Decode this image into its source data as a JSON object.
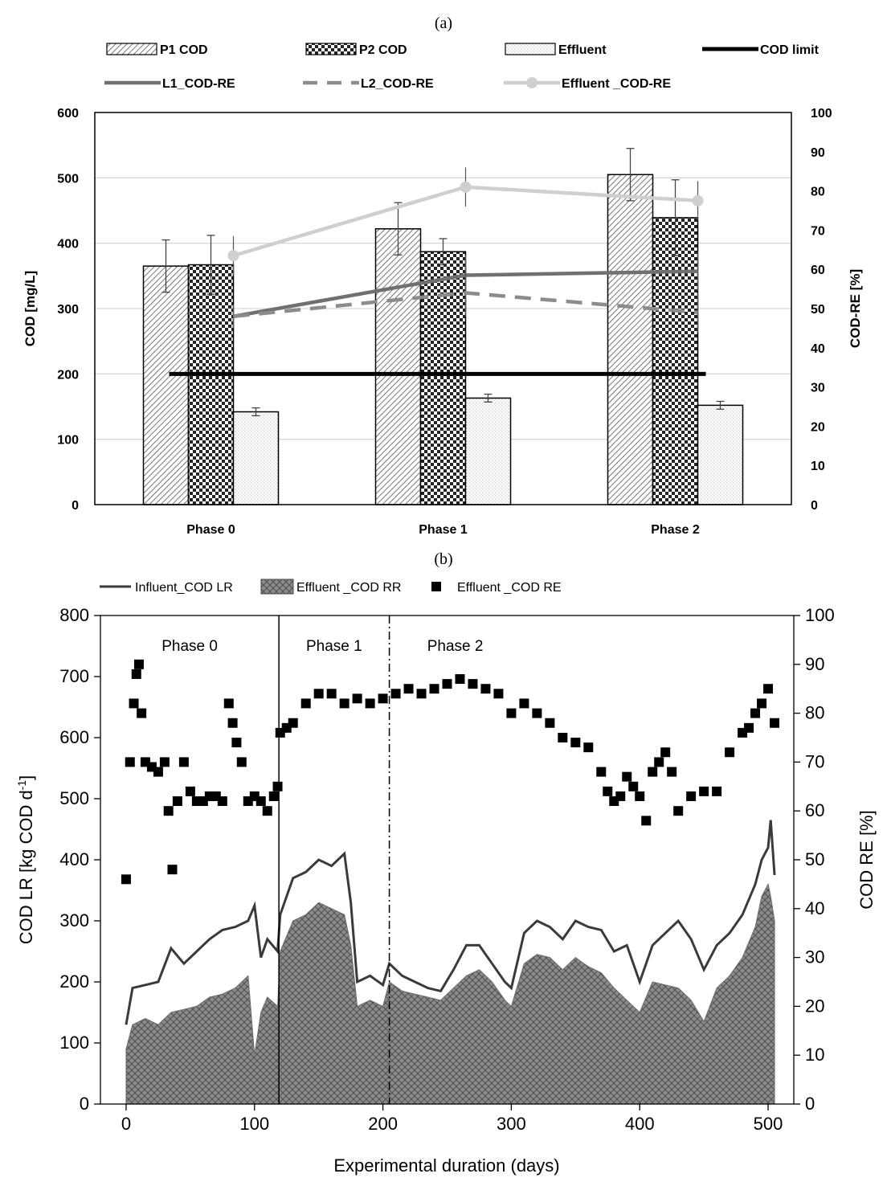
{
  "chart_data": [
    {
      "panel_label": "(a)",
      "type": "bar",
      "categories": [
        "Phase 0",
        "Phase 1",
        "Phase 2"
      ],
      "series": [
        {
          "name": "P1 COD",
          "values": [
            365,
            422,
            505
          ],
          "errors": [
            40,
            40,
            40
          ]
        },
        {
          "name": "P2 COD",
          "values": [
            367,
            387,
            439
          ],
          "errors": [
            45,
            20,
            58
          ]
        },
        {
          "name": "Effluent",
          "values": [
            142,
            163,
            152
          ],
          "errors": [
            6,
            6,
            6
          ]
        }
      ],
      "lines": [
        {
          "name": "COD limit",
          "values": [
            200,
            200,
            200
          ],
          "axis": "left"
        },
        {
          "name": "L1_COD-RE",
          "values": [
            48,
            58.5,
            59.5
          ],
          "errors": [
            3,
            5,
            5
          ],
          "axis": "right"
        },
        {
          "name": "L2_COD-RE",
          "values": [
            48,
            54,
            49
          ],
          "errors": [
            3,
            6,
            5
          ],
          "axis": "right"
        },
        {
          "name": "Effluent _COD-RE",
          "values": [
            63.5,
            81,
            77.5
          ],
          "errors": [
            5,
            5,
            5
          ],
          "axis": "right"
        }
      ],
      "ylabel": "COD [mg/L]",
      "ylim": [
        0,
        600
      ],
      "yticks": [
        "0",
        "100",
        "200",
        "300",
        "400",
        "500",
        "600"
      ],
      "y2label": "COD-RE [%]",
      "y2lim": [
        0,
        100
      ],
      "y2ticks": [
        "0",
        "10",
        "20",
        "30",
        "40",
        "50",
        "60",
        "70",
        "80",
        "90",
        "100"
      ],
      "legend": "top"
    },
    {
      "panel_label": "(b)",
      "type": "line",
      "xlabel": "Experimental duration (days)",
      "xlim": [
        -20,
        520
      ],
      "xticks": [
        "0",
        "100",
        "200",
        "300",
        "400",
        "500"
      ],
      "ylabel": "COD LR [kg COD d",
      "ylabel_sup": "-1",
      "ylabel_end": "]",
      "ylim": [
        0,
        800
      ],
      "yticks": [
        "0",
        "100",
        "200",
        "300",
        "400",
        "500",
        "600",
        "700",
        "800"
      ],
      "y2label": "COD RE [%]",
      "y2lim": [
        0,
        100
      ],
      "y2ticks": [
        "0",
        "10",
        "20",
        "30",
        "40",
        "50",
        "60",
        "70",
        "80",
        "90",
        "100"
      ],
      "phase_labels": [
        "Phase 0",
        "Phase 1",
        "Phase 2"
      ],
      "phase_boundaries": [
        119,
        205
      ],
      "legend_labels": [
        "Influent_COD LR",
        "Effluent _COD RR",
        "Effluent _COD RE"
      ],
      "series": [
        {
          "name": "Influent_COD LR",
          "kind": "line",
          "x": [
            0,
            5,
            15,
            25,
            35,
            45,
            55,
            65,
            75,
            85,
            95,
            100,
            105,
            110,
            118,
            120,
            130,
            140,
            150,
            160,
            170,
            175,
            180,
            190,
            200,
            205,
            215,
            225,
            235,
            245,
            255,
            265,
            275,
            285,
            295,
            300,
            310,
            320,
            330,
            340,
            350,
            360,
            370,
            380,
            390,
            400,
            410,
            420,
            430,
            440,
            450,
            460,
            470,
            480,
            490,
            495,
            500,
            502,
            505
          ],
          "values": [
            130,
            190,
            195,
            200,
            255,
            230,
            250,
            270,
            285,
            290,
            300,
            325,
            240,
            270,
            250,
            310,
            370,
            380,
            400,
            390,
            410,
            330,
            200,
            210,
            195,
            230,
            210,
            200,
            190,
            185,
            220,
            260,
            260,
            230,
            200,
            190,
            280,
            300,
            290,
            270,
            300,
            290,
            285,
            250,
            260,
            200,
            260,
            280,
            300,
            270,
            220,
            260,
            280,
            310,
            360,
            400,
            420,
            465,
            375
          ]
        },
        {
          "name": "Effluent _COD RR",
          "kind": "area",
          "x": [
            0,
            5,
            15,
            25,
            35,
            45,
            55,
            65,
            75,
            85,
            95,
            100,
            105,
            110,
            118,
            120,
            130,
            140,
            150,
            160,
            170,
            175,
            180,
            190,
            200,
            205,
            215,
            225,
            235,
            245,
            255,
            265,
            275,
            285,
            295,
            300,
            310,
            320,
            330,
            340,
            350,
            360,
            370,
            380,
            390,
            400,
            410,
            420,
            430,
            440,
            450,
            460,
            470,
            480,
            490,
            495,
            500,
            502,
            505
          ],
          "values": [
            90,
            130,
            140,
            130,
            150,
            155,
            160,
            175,
            180,
            190,
            210,
            80,
            150,
            175,
            160,
            250,
            300,
            310,
            330,
            320,
            310,
            260,
            160,
            170,
            160,
            200,
            185,
            180,
            175,
            170,
            190,
            210,
            220,
            200,
            170,
            160,
            230,
            245,
            240,
            220,
            240,
            225,
            215,
            190,
            170,
            150,
            200,
            195,
            190,
            170,
            135,
            190,
            210,
            240,
            290,
            340,
            360,
            340,
            300
          ]
        },
        {
          "name": "Effluent _COD RE",
          "kind": "scatter",
          "x": [
            0,
            3,
            6,
            8,
            10,
            12,
            15,
            20,
            25,
            30,
            33,
            36,
            40,
            45,
            50,
            55,
            60,
            65,
            70,
            75,
            80,
            83,
            86,
            90,
            95,
            100,
            105,
            110,
            115,
            118,
            120,
            125,
            130,
            140,
            150,
            160,
            170,
            180,
            190,
            200,
            210,
            220,
            230,
            240,
            250,
            260,
            270,
            280,
            290,
            300,
            310,
            320,
            330,
            340,
            350,
            360,
            370,
            375,
            380,
            385,
            390,
            395,
            400,
            405,
            410,
            415,
            420,
            425,
            430,
            440,
            450,
            460,
            470,
            480,
            485,
            490,
            495,
            500,
            505
          ],
          "values": [
            46,
            70,
            82,
            88,
            90,
            80,
            70,
            69,
            68,
            70,
            60,
            48,
            62,
            70,
            64,
            62,
            62,
            63,
            63,
            62,
            82,
            78,
            74,
            70,
            62,
            63,
            62,
            60,
            63,
            65,
            76,
            77,
            78,
            82,
            84,
            84,
            82,
            83,
            82,
            83,
            84,
            85,
            84,
            85,
            86,
            87,
            86,
            85,
            84,
            80,
            82,
            80,
            78,
            75,
            74,
            73,
            68,
            64,
            62,
            63,
            67,
            65,
            63,
            58,
            68,
            70,
            72,
            68,
            60,
            63,
            64,
            64,
            72,
            76,
            77,
            80,
            82,
            85,
            78
          ]
        }
      ]
    }
  ],
  "style": {
    "ink": "#000000",
    "grid": "#d9d9d9",
    "l1_color": "#707070",
    "l2_color": "#8c8c8c",
    "eff_re_color": "#cfcfcf",
    "area_fill": "#7a7a7a",
    "lr_line": "#3a3a3a"
  }
}
